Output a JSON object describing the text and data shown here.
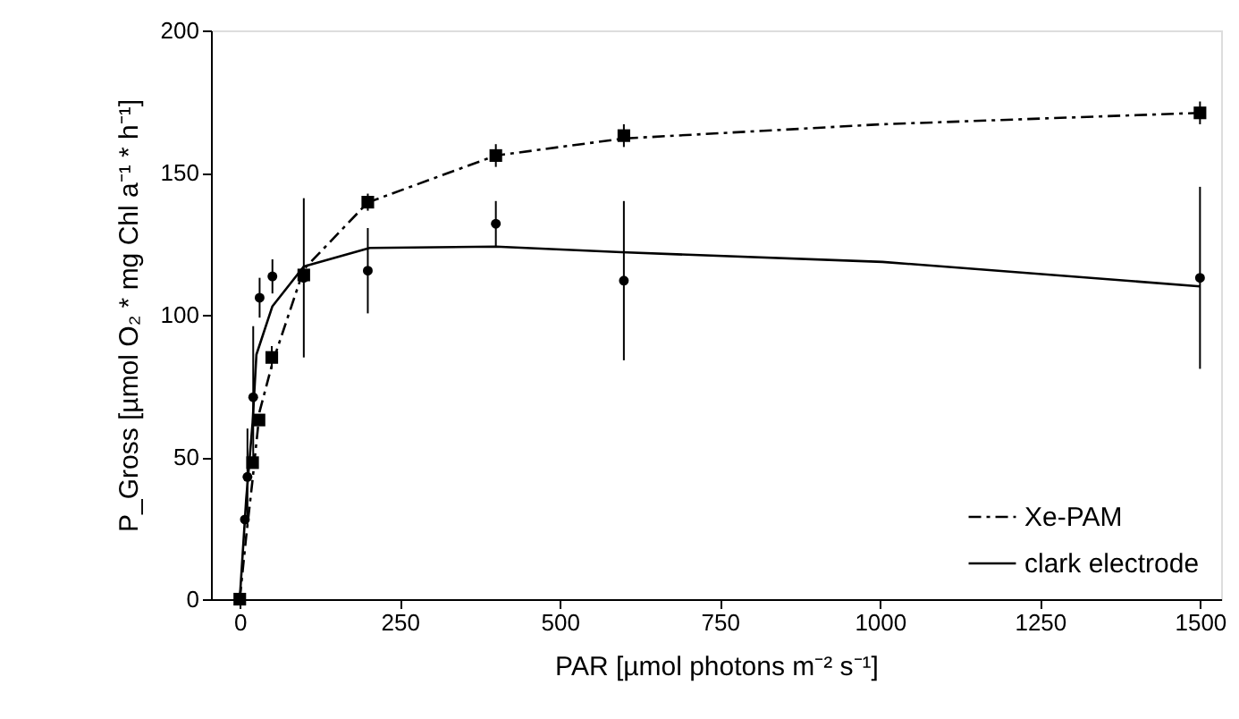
{
  "chart_data": {
    "type": "scatter",
    "xlabel": "PAR [µmol photons m⁻² s⁻¹]",
    "ylabel": "P_Gross [µmol O₂ * mg Chl a⁻¹ * h⁻¹]",
    "xlim": [
      -45,
      1533
    ],
    "xticks": [
      0,
      250,
      500,
      750,
      1000,
      1250,
      1500
    ],
    "ylim": [
      0,
      200
    ],
    "yticks": [
      0,
      50,
      100,
      150,
      200
    ],
    "grid": false,
    "legend": "bottom right",
    "series": [
      {
        "name": "Xe-PAM",
        "type": "line",
        "line_style": "dashed",
        "marker": "none",
        "color": "#000000",
        "x": [
          0,
          10,
          20,
          31,
          51,
          100,
          200,
          400,
          600,
          1004,
          1500
        ],
        "values": [
          0,
          22,
          42,
          66,
          83,
          116,
          139.5,
          156,
          162,
          167,
          171
        ]
      },
      {
        "name": "clark electrode",
        "type": "line",
        "line_style": "solid",
        "marker": "none",
        "color": "#000000",
        "x": [
          0,
          10,
          20,
          26,
          51,
          100,
          203,
          400,
          596,
          1004,
          1500
        ],
        "values": [
          0,
          35,
          62,
          86,
          103,
          117,
          123.5,
          124,
          122,
          118.6,
          110
        ]
      },
      {
        "marker": "square",
        "color": "#000000",
        "x": [
          0,
          20,
          30,
          50,
          100,
          200,
          400,
          600,
          1500
        ],
        "values": [
          0,
          48,
          63,
          85,
          114,
          139.6,
          156,
          163,
          171
        ],
        "errors": [
          null,
          null,
          null,
          4,
          null,
          3,
          4,
          4,
          4
        ]
      },
      {
        "marker": "circle",
        "color": "#000000",
        "x": [
          8,
          12,
          21,
          31,
          51,
          100,
          200,
          400,
          600,
          1500
        ],
        "values": [
          28,
          43,
          71,
          106,
          113.5,
          113,
          115.5,
          132,
          112,
          113
        ],
        "errors": [
          null,
          17,
          25,
          7,
          6,
          28,
          15,
          8,
          28,
          32
        ]
      }
    ]
  }
}
